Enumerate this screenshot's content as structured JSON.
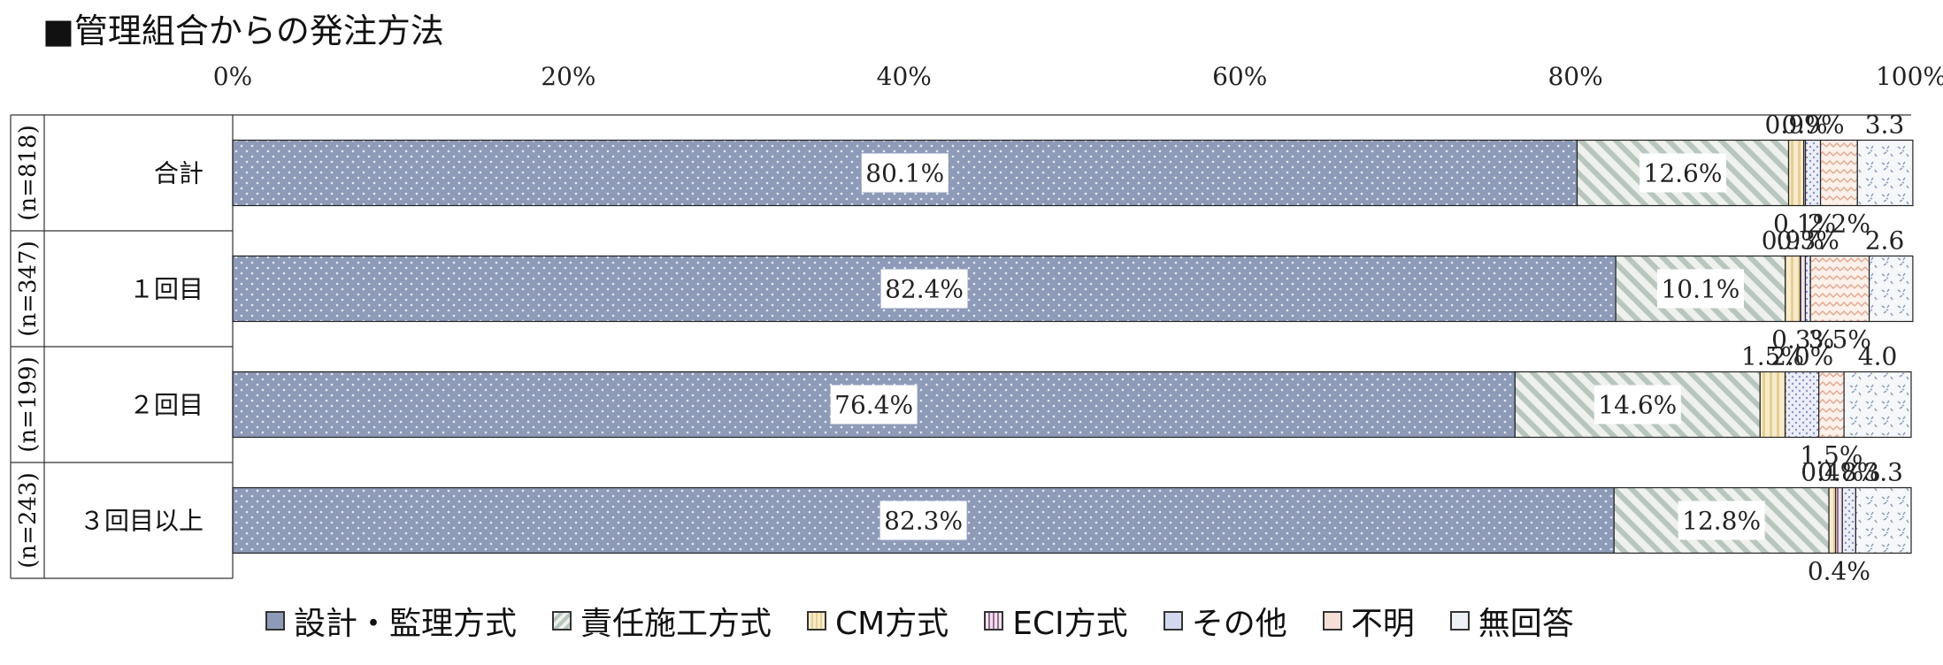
{
  "title": "■管理組合からの発注方法",
  "chart_data": {
    "type": "bar",
    "orientation": "horizontal",
    "stacked": true,
    "xlim": [
      0,
      100
    ],
    "x_ticks": [
      "0%",
      "20%",
      "40%",
      "60%",
      "80%",
      "100%"
    ],
    "categories": [
      "合計",
      "１回目",
      "２回目",
      "３回目以上"
    ],
    "n_labels": [
      "(n=818)",
      "(n=347)",
      "(n=199)",
      "(n=243)"
    ],
    "series": [
      {
        "name": "設計・監理方式",
        "color": "#8e9bb8",
        "pattern": "dots",
        "values": [
          80.1,
          82.4,
          76.4,
          82.3
        ],
        "labels": [
          "80.1%",
          "82.4%",
          "76.4%",
          "82.3%"
        ]
      },
      {
        "name": "責任施工方式",
        "color": "#c9d3cc",
        "pattern": "diagonal",
        "values": [
          12.6,
          10.1,
          14.6,
          12.8
        ],
        "labels": [
          "12.6%",
          "10.1%",
          "14.6%",
          "12.8%"
        ]
      },
      {
        "name": "CM方式",
        "color": "#f3e4bd",
        "pattern": "vertical",
        "values": [
          0.9,
          0.9,
          1.5,
          0.4
        ],
        "labels": [
          "0.9%",
          "0.9%",
          "1.5%",
          "0.4%"
        ]
      },
      {
        "name": "ECI方式",
        "color": "#d8b9d0",
        "pattern": "vlines",
        "values": [
          0.1,
          0.3,
          0.0,
          0.4
        ],
        "labels": [
          "0.1%",
          "0.3%",
          "",
          "0.4%"
        ]
      },
      {
        "name": "その他",
        "color": "#d4d8ee",
        "pattern": "grid",
        "values": [
          0.9,
          0.3,
          2.0,
          0.8
        ],
        "labels": [
          "0.9%",
          "0.3%",
          "2.0%",
          "0.8%"
        ]
      },
      {
        "name": "不明",
        "color": "#f6dfd6",
        "pattern": "wave",
        "values": [
          2.2,
          3.5,
          1.5,
          0.0
        ],
        "labels": [
          "2.2%",
          "3.5%",
          "1.5%",
          ""
        ]
      },
      {
        "name": "無回答",
        "color": "#eef2f7",
        "pattern": "confetti",
        "values": [
          3.3,
          2.6,
          4.0,
          3.3
        ],
        "labels": [
          "3.3",
          "2.6",
          "4.0",
          "3.3"
        ]
      }
    ],
    "legend_position": "bottom",
    "grid": false
  }
}
